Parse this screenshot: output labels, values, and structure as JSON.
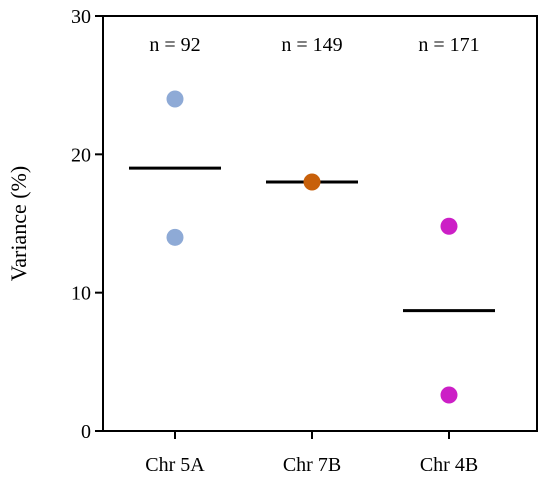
{
  "chart_data": {
    "type": "scatter",
    "ylabel": "Variance (%)",
    "xlabel": "",
    "ylim": [
      0,
      30
    ],
    "yticks": [
      0,
      10,
      20,
      30
    ],
    "grid": false,
    "categories": [
      "Chr 5A",
      "Chr 7B",
      "Chr 4B"
    ],
    "annotations": [
      "n = 92",
      "n = 149",
      "n = 171"
    ],
    "series": [
      {
        "category": "Chr 5A",
        "points": [
          24,
          14
        ],
        "mean": 19,
        "color": "#8eaad6"
      },
      {
        "category": "Chr 7B",
        "points": [
          18
        ],
        "mean": 18,
        "color": "#c8600a"
      },
      {
        "category": "Chr 4B",
        "points": [
          14.8,
          2.6
        ],
        "mean": 8.7,
        "color": "#cc1fc6"
      }
    ]
  }
}
